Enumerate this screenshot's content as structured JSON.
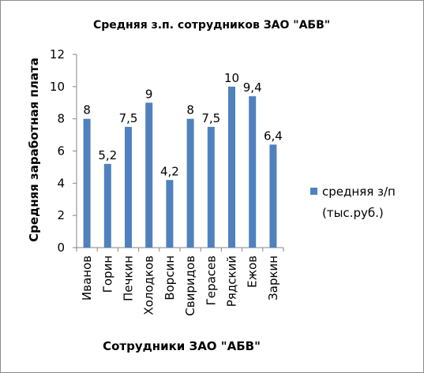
{
  "chart_data": {
    "type": "bar",
    "title": "Средняя з.п. сотрудников ЗАО \"АБВ\"",
    "xlabel": "Сотрудники ЗАО \"АБВ\"",
    "ylabel": "Средняя заработная плата",
    "categories": [
      "Иванов",
      "Горин",
      "Печкин",
      "Холодков",
      "Ворсин",
      "Свиридов",
      "Герасев",
      "Рядский",
      "Ежов",
      "Заркин"
    ],
    "series": [
      {
        "name": "средняя з/п (тыс.руб.)",
        "legend_lines": [
          "средняя з/п",
          "(тыс.руб.)"
        ],
        "values": [
          8,
          5.2,
          7.5,
          9,
          4.2,
          8,
          7.5,
          10,
          9.4,
          6.4
        ],
        "data_labels": [
          "8",
          "5,2",
          "7,5",
          "9",
          "4,2",
          "8",
          "7,5",
          "10",
          "9,4",
          "6,4"
        ],
        "color": "#4f81bd"
      }
    ],
    "ylim": [
      0,
      12
    ],
    "yticks": [
      "0",
      "2",
      "4",
      "6",
      "8",
      "10",
      "12"
    ],
    "grid": false,
    "legend_position": "right"
  }
}
